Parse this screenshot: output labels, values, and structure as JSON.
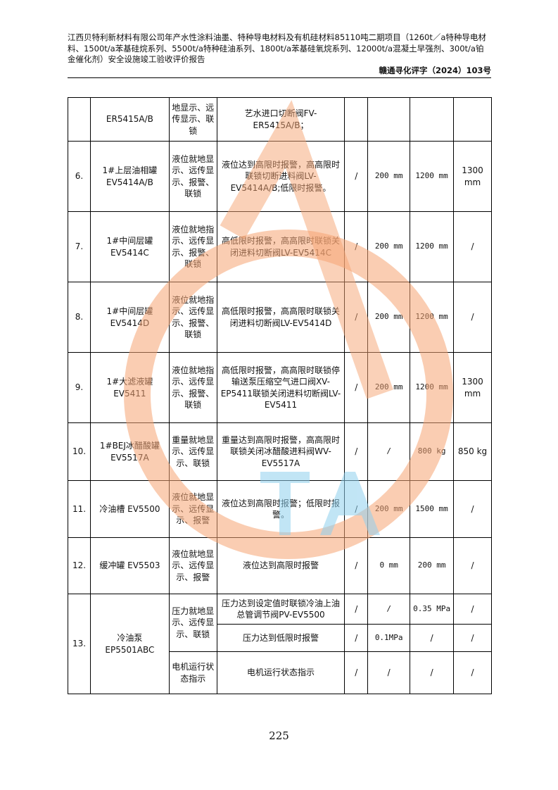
{
  "header": {
    "title": "江西贝特利新材料有限公司年产水性涂料油墨、特种导电材料及有机硅材料85110吨二期项目（1260t／a特种导电材料、1500t/a苯基硅烷系列、5500t/a特种硅油系列、1800t/a苯基硅氧烷系列、12000t/a混凝土早强剂、300t/a铂金催化剂）安全设施竣工验收评价报告",
    "doc_no": "赣通寻化评字（2024）103号"
  },
  "rows": [
    {
      "no": "",
      "name": "ER5415A/B",
      "type": "地显示、远传显示、联锁",
      "desc": "艺水进口切断阀FV-ER5415A/B；",
      "c1": "",
      "c2": "",
      "c3": "",
      "c4": ""
    },
    {
      "no": "6.",
      "name": "1#上层油相罐 EV5414A/B",
      "type": "液位就地显示、远传显示、报警、联锁",
      "desc": "液位达到高限时报警，高高限时联锁切断进料阀LV-EV5414A/B;低限时报警。",
      "c1": "/",
      "c2": "200 mm",
      "c3": "1200 mm",
      "c4": "1300 mm"
    },
    {
      "no": "7.",
      "name": "1#中间层罐 EV5414C",
      "type": "液位就地指示、远传显示、报警、联锁",
      "desc": "高低限时报警，高高限时联锁关闭进料切断阀LV-EV5414C",
      "c1": "/",
      "c2": "200 mm",
      "c3": "1200 mm",
      "c4": "/"
    },
    {
      "no": "8.",
      "name": "1#中间层罐 EV5414D",
      "type": "液位就地指示、远传显示、报警、联锁",
      "desc": "高低限时报警，高高限时联锁关闭进料切断阀LV-EV5414D",
      "c1": "/",
      "c2": "200 mm",
      "c3": "1200 mm",
      "c4": "/"
    },
    {
      "no": "9.",
      "name": "1#大滤液罐 EV5411",
      "type": "液位就地指示、远传显示、报警、联锁",
      "desc": "高低限时报警，高高限时联锁停输送泵压缩空气进口阀XV-EP5411联锁关闭进料切断阀LV-EV5411",
      "c1": "/",
      "c2": "200 mm",
      "c3": "1200 mm",
      "c4": "1300 mm"
    },
    {
      "no": "10.",
      "name": "1#BEJ冰醋酸罐 EV5517A",
      "type": "重量就地显示、远传显示、联锁",
      "desc": "重量达到高限时报警，高高限时联锁关闭冰醋酸进料阀WV-EV5517A",
      "c1": "/",
      "c2": "/",
      "c3": "800 kg",
      "c4": "850 kg"
    },
    {
      "no": "11.",
      "name": "冷油槽 EV5500",
      "type": "液位就地显示、远传显示、报警",
      "desc": "液位达到高限时报警；低限时报警。",
      "c1": "/",
      "c2": "200 mm",
      "c3": "1500 mm",
      "c4": "/"
    },
    {
      "no": "12.",
      "name": "缓冲罐 EV5503",
      "type": "液位就地显示、远传显示、报警",
      "desc": "液位达到高限时报警",
      "c1": "/",
      "c2": "0 mm",
      "c3": "200 mm",
      "c4": "/"
    }
  ],
  "row13": {
    "no": "13.",
    "name": "冷油泵 EP5501ABC",
    "type1": "压力就地显示、远传显示、联锁",
    "desc1": "压力达到设定值时联锁冷油上油总管调节阀PV-EV5500",
    "a1": "/",
    "b1": "/",
    "c1": "0.35 MPa",
    "d1": "/",
    "desc2": "压力达到低限时报警",
    "a2": "/",
    "b2": "0.1MPa",
    "c2": "/",
    "d2": "/",
    "type2": "电机运行状态指示",
    "desc3": "电机运行状态指示",
    "a3": "/",
    "b3": "/",
    "c3": "/",
    "d3": "/"
  },
  "page_number": "225",
  "watermark": {
    "colors": {
      "orange": "#f5a472",
      "blue": "#8fd0ee"
    }
  }
}
